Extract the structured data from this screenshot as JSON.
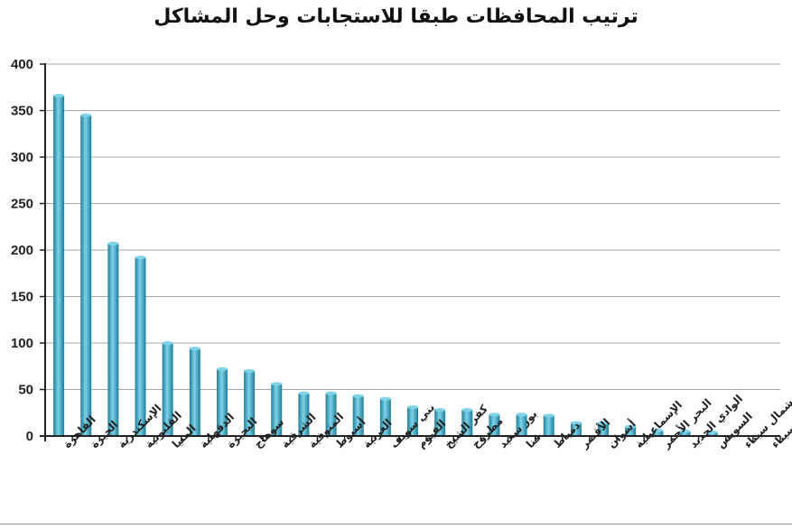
{
  "chart_data": {
    "type": "bar",
    "title": "ترتيب المحافظات طبقا  للاستجابات وحل المشاكل",
    "xlabel": "",
    "ylabel": "",
    "ylim": [
      0,
      400
    ],
    "yticks": [
      0,
      50,
      100,
      150,
      200,
      250,
      300,
      350,
      400
    ],
    "grid": true,
    "legend": "none",
    "categories": [
      "القاهرة",
      "الجيزة",
      "الإسكندرية",
      "القليوبية",
      "المنيا",
      "الدقهلية",
      "البحيرة",
      "سوهاج",
      "الشرقية",
      "المنوفية",
      "أسيوط",
      "الغربية",
      "بني سويف",
      "الفيوم",
      "كفر الشيخ",
      "مطروح",
      "بور سعيد",
      "قنا",
      "دمياط",
      "الأقصر",
      "أسوان",
      "الإسماعيلية",
      "البحر الأحمر",
      "الوادي الجديد",
      "السويس",
      "شمال سيناء",
      "جنوب سيناء"
    ],
    "values": [
      366,
      345,
      207,
      192,
      100,
      94,
      72,
      70,
      56,
      46,
      46,
      43,
      40,
      31,
      28,
      28,
      23,
      23,
      22,
      14,
      14,
      10,
      6,
      5,
      4,
      0,
      0
    ],
    "colors": {
      "bar": "#31a9c6",
      "bar_light": "#7fd3e8",
      "bar_dark": "#1d7e98",
      "grid": "#a6a6a6",
      "axis": "#222222"
    }
  }
}
